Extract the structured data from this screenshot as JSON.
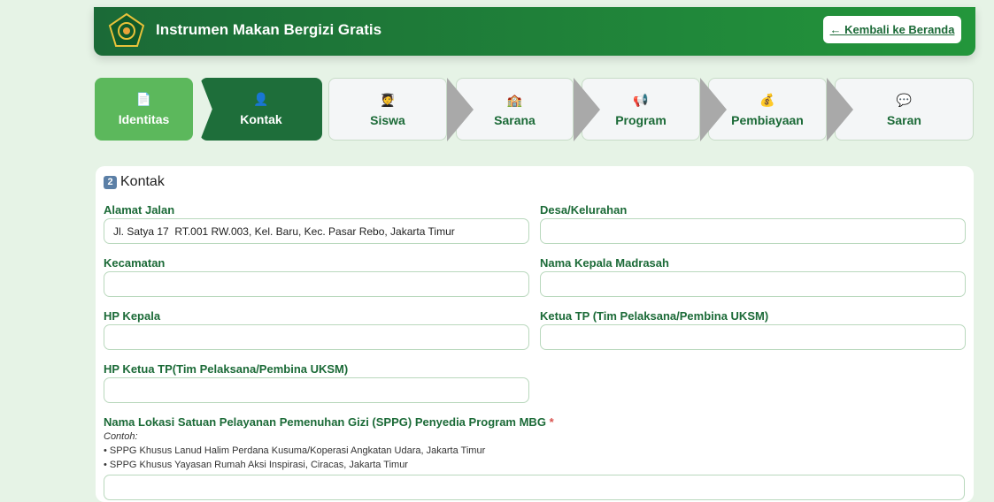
{
  "header": {
    "title": "Instrumen Makan Bergizi Gratis",
    "back_label": "← Kembali ke Beranda"
  },
  "steps": [
    {
      "label": "Identitas",
      "icon": "document-icon",
      "glyph": "📄",
      "state": "done"
    },
    {
      "label": "Kontak",
      "icon": "person-icon",
      "glyph": "👤",
      "state": "active"
    },
    {
      "label": "Siswa",
      "icon": "student-icon",
      "glyph": "🧑‍🎓",
      "state": "pending"
    },
    {
      "label": "Sarana",
      "icon": "school-icon",
      "glyph": "🏫",
      "state": "pending"
    },
    {
      "label": "Program",
      "icon": "megaphone-icon",
      "glyph": "📢",
      "state": "pending"
    },
    {
      "label": "Pembiayaan",
      "icon": "money-bag-icon",
      "glyph": "💰",
      "state": "pending"
    },
    {
      "label": "Saran",
      "icon": "speech-bubble-icon",
      "glyph": "💬",
      "state": "pending"
    }
  ],
  "section": {
    "number": "2",
    "title": "Kontak"
  },
  "fields": {
    "alamat": {
      "label": "Alamat Jalan",
      "value": "Jl. Satya 17  RT.001 RW.003, Kel. Baru, Kec. Pasar Rebo, Jakarta Timur"
    },
    "desa": {
      "label": "Desa/Kelurahan",
      "value": ""
    },
    "kecamatan": {
      "label": "Kecamatan",
      "value": ""
    },
    "kepala": {
      "label": "Nama Kepala Madrasah",
      "value": ""
    },
    "hp_kepala": {
      "label": "HP Kepala",
      "value": ""
    },
    "ketua_tp": {
      "label": "Ketua TP (Tim Pelaksana/Pembina UKSM)",
      "value": ""
    },
    "hp_ketua_tp": {
      "label": "HP Ketua TP(Tim Pelaksana/Pembina UKSM)",
      "value": ""
    },
    "sppg": {
      "label": "Nama Lokasi Satuan Pelayanan Pemenuhan Gizi (SPPG) Penyedia Program MBG",
      "required": "*",
      "example_title": "Contoh:",
      "examples": [
        "• SPPG Khusus Lanud Halim Perdana Kusuma/Koperasi Angkatan Udara, Jakarta Timur",
        "• SPPG Khusus Yayasan Rumah Aksi Inspirasi, Ciracas, Jakarta Timur"
      ]
    }
  },
  "colors": {
    "primary": "#1b6a37",
    "done": "#5cb85c",
    "active": "#1e6e3a",
    "background": "#e6f3e6"
  }
}
